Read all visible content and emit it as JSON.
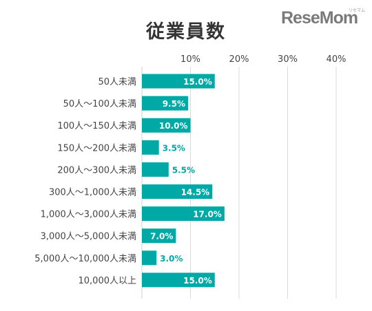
{
  "title": "従業員数",
  "logo": {
    "text": "ReseMom",
    "small": "リセマム"
  },
  "chart_data": {
    "type": "bar",
    "orientation": "horizontal",
    "title": "従業員数",
    "categories": [
      "50人未満",
      "50人～100人未満",
      "100人～150人未満",
      "150人～200人未満",
      "200人～300人未満",
      "300人～1,000人未満",
      "1,000人～3,000人未満",
      "3,000人～5,000人未満",
      "5,000人～10,000人未満",
      "10,000人以上"
    ],
    "values": [
      15.0,
      9.5,
      10.0,
      3.5,
      5.5,
      14.5,
      17.0,
      7.0,
      3.0,
      15.0
    ],
    "data_labels": [
      "15.0%",
      "9.5%",
      "10.0%",
      "3.5%",
      "5.5%",
      "14.5%",
      "17.0%",
      "7.0%",
      "3.0%",
      "15.0%"
    ],
    "x_ticks": [
      10,
      20,
      30,
      40
    ],
    "x_tick_labels": [
      "10%",
      "20%",
      "30%",
      "40%"
    ],
    "xlim": [
      0,
      40
    ],
    "grid": true,
    "bar_color": "#00A9A5",
    "inside_label_color": "#FFFFFF",
    "outside_label_color": "#00A9A5"
  }
}
